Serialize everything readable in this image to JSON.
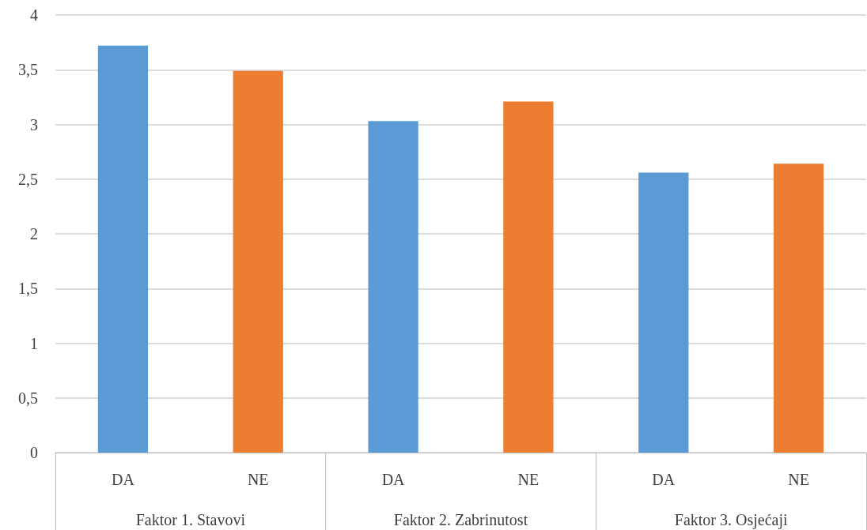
{
  "chart_data": {
    "type": "bar",
    "categories": [
      "Faktor 1. Stavovi",
      "Faktor 2. Zabrinutost",
      "Faktor 3. Osjećaji"
    ],
    "series": [
      {
        "name": "DA",
        "color": "#5b9bd5",
        "values": [
          3.72,
          3.03,
          2.56
        ]
      },
      {
        "name": "NE",
        "color": "#ed7d31",
        "values": [
          3.49,
          3.21,
          2.64
        ]
      }
    ],
    "ylim": [
      0,
      4
    ],
    "yticks": [
      0,
      {
        "value": 0.5,
        "label": "0,5"
      },
      1,
      {
        "value": 1.5,
        "label": "1,5"
      },
      2,
      {
        "value": 2.5,
        "label": "2,5"
      },
      3,
      {
        "value": 3.5,
        "label": "3,5"
      },
      4
    ],
    "grid": true
  }
}
